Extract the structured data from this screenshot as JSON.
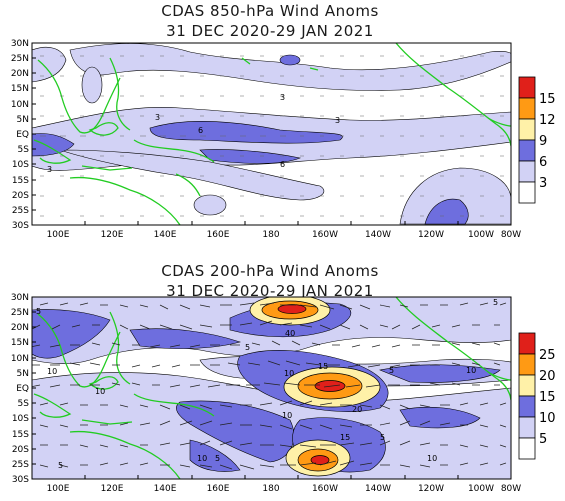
{
  "panels": [
    {
      "title1": "CDAS 850-hPa Wind Anoms",
      "title2": "31 DEC 2020-29 JAN 2021",
      "lat_labels": [
        "30N",
        "25N",
        "20N",
        "15N",
        "10N",
        "5N",
        "EQ",
        "5S",
        "10S",
        "15S",
        "20S",
        "25S",
        "30S"
      ],
      "lon_labels": [
        "100E",
        "120E",
        "140E",
        "160E",
        "180",
        "160W",
        "140W",
        "120W",
        "100W",
        "80W"
      ],
      "legend_values": [
        "15",
        "12",
        "9",
        "6",
        "3"
      ],
      "contour_labels": [
        "3",
        "6",
        "3",
        "3",
        "6",
        "3"
      ],
      "colors": [
        "#ffffff",
        "#d2d2f5",
        "#6e6ede",
        "#fff1a8",
        "#ff9a14",
        "#e0201a"
      ]
    },
    {
      "title1": "CDAS 200-hPa Wind Anoms",
      "title2": "31 DEC 2020-29 JAN 2021",
      "lat_labels": [
        "30N",
        "25N",
        "20N",
        "15N",
        "10N",
        "5N",
        "EQ",
        "5S",
        "10S",
        "15S",
        "20S",
        "25S",
        "30S"
      ],
      "lon_labels": [
        "100E",
        "120E",
        "140E",
        "160E",
        "180",
        "160W",
        "140W",
        "120W",
        "100W",
        "80W"
      ],
      "legend_values": [
        "25",
        "20",
        "15",
        "10",
        "5"
      ],
      "contour_labels": [
        "5",
        "10",
        "10",
        "5",
        "5",
        "40",
        "15",
        "10",
        "5",
        "10",
        "20",
        "10",
        "15",
        "5",
        "10",
        "5",
        "5",
        "10"
      ],
      "colors": [
        "#ffffff",
        "#d2d2f5",
        "#6e6ede",
        "#fff1a8",
        "#ff9a14",
        "#e0201a"
      ]
    }
  ]
}
